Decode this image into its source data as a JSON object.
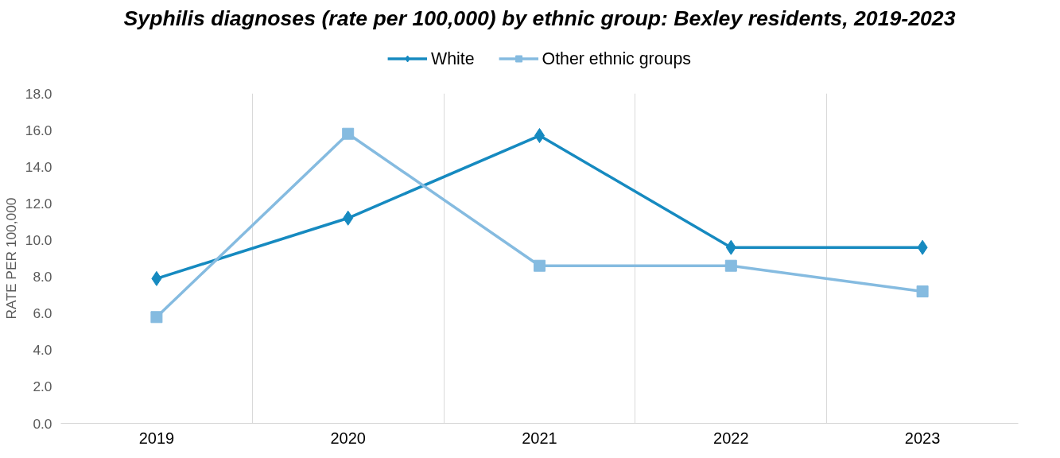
{
  "chart_data": {
    "type": "line",
    "title": "Syphilis diagnoses (rate per 100,000) by ethnic group: Bexley residents, 2019-2023",
    "ylabel": "RATE PER 100,000",
    "categories": [
      "2019",
      "2020",
      "2021",
      "2022",
      "2023"
    ],
    "series": [
      {
        "name": "White",
        "color": "#168ac0",
        "marker": "diamond",
        "values": [
          7.9,
          11.2,
          15.7,
          9.6,
          9.6
        ]
      },
      {
        "name": "Other ethnic groups",
        "color": "#85bbe0",
        "marker": "square",
        "values": [
          5.8,
          15.8,
          8.6,
          8.6,
          7.2
        ]
      }
    ],
    "ylim": [
      0,
      18
    ],
    "yticks": [
      {
        "value": 0,
        "label": "0.0"
      },
      {
        "value": 2,
        "label": "2.0"
      },
      {
        "value": 4,
        "label": "4.0"
      },
      {
        "value": 6,
        "label": "6.0"
      },
      {
        "value": 8,
        "label": "8.0"
      },
      {
        "value": 10,
        "label": "10.0"
      },
      {
        "value": 12,
        "label": "12.0"
      },
      {
        "value": 14,
        "label": "14.0"
      },
      {
        "value": 16,
        "label": "16.0"
      },
      {
        "value": 18,
        "label": "18.0"
      }
    ],
    "grid": "x",
    "legend": "top",
    "line_style": "solid"
  }
}
